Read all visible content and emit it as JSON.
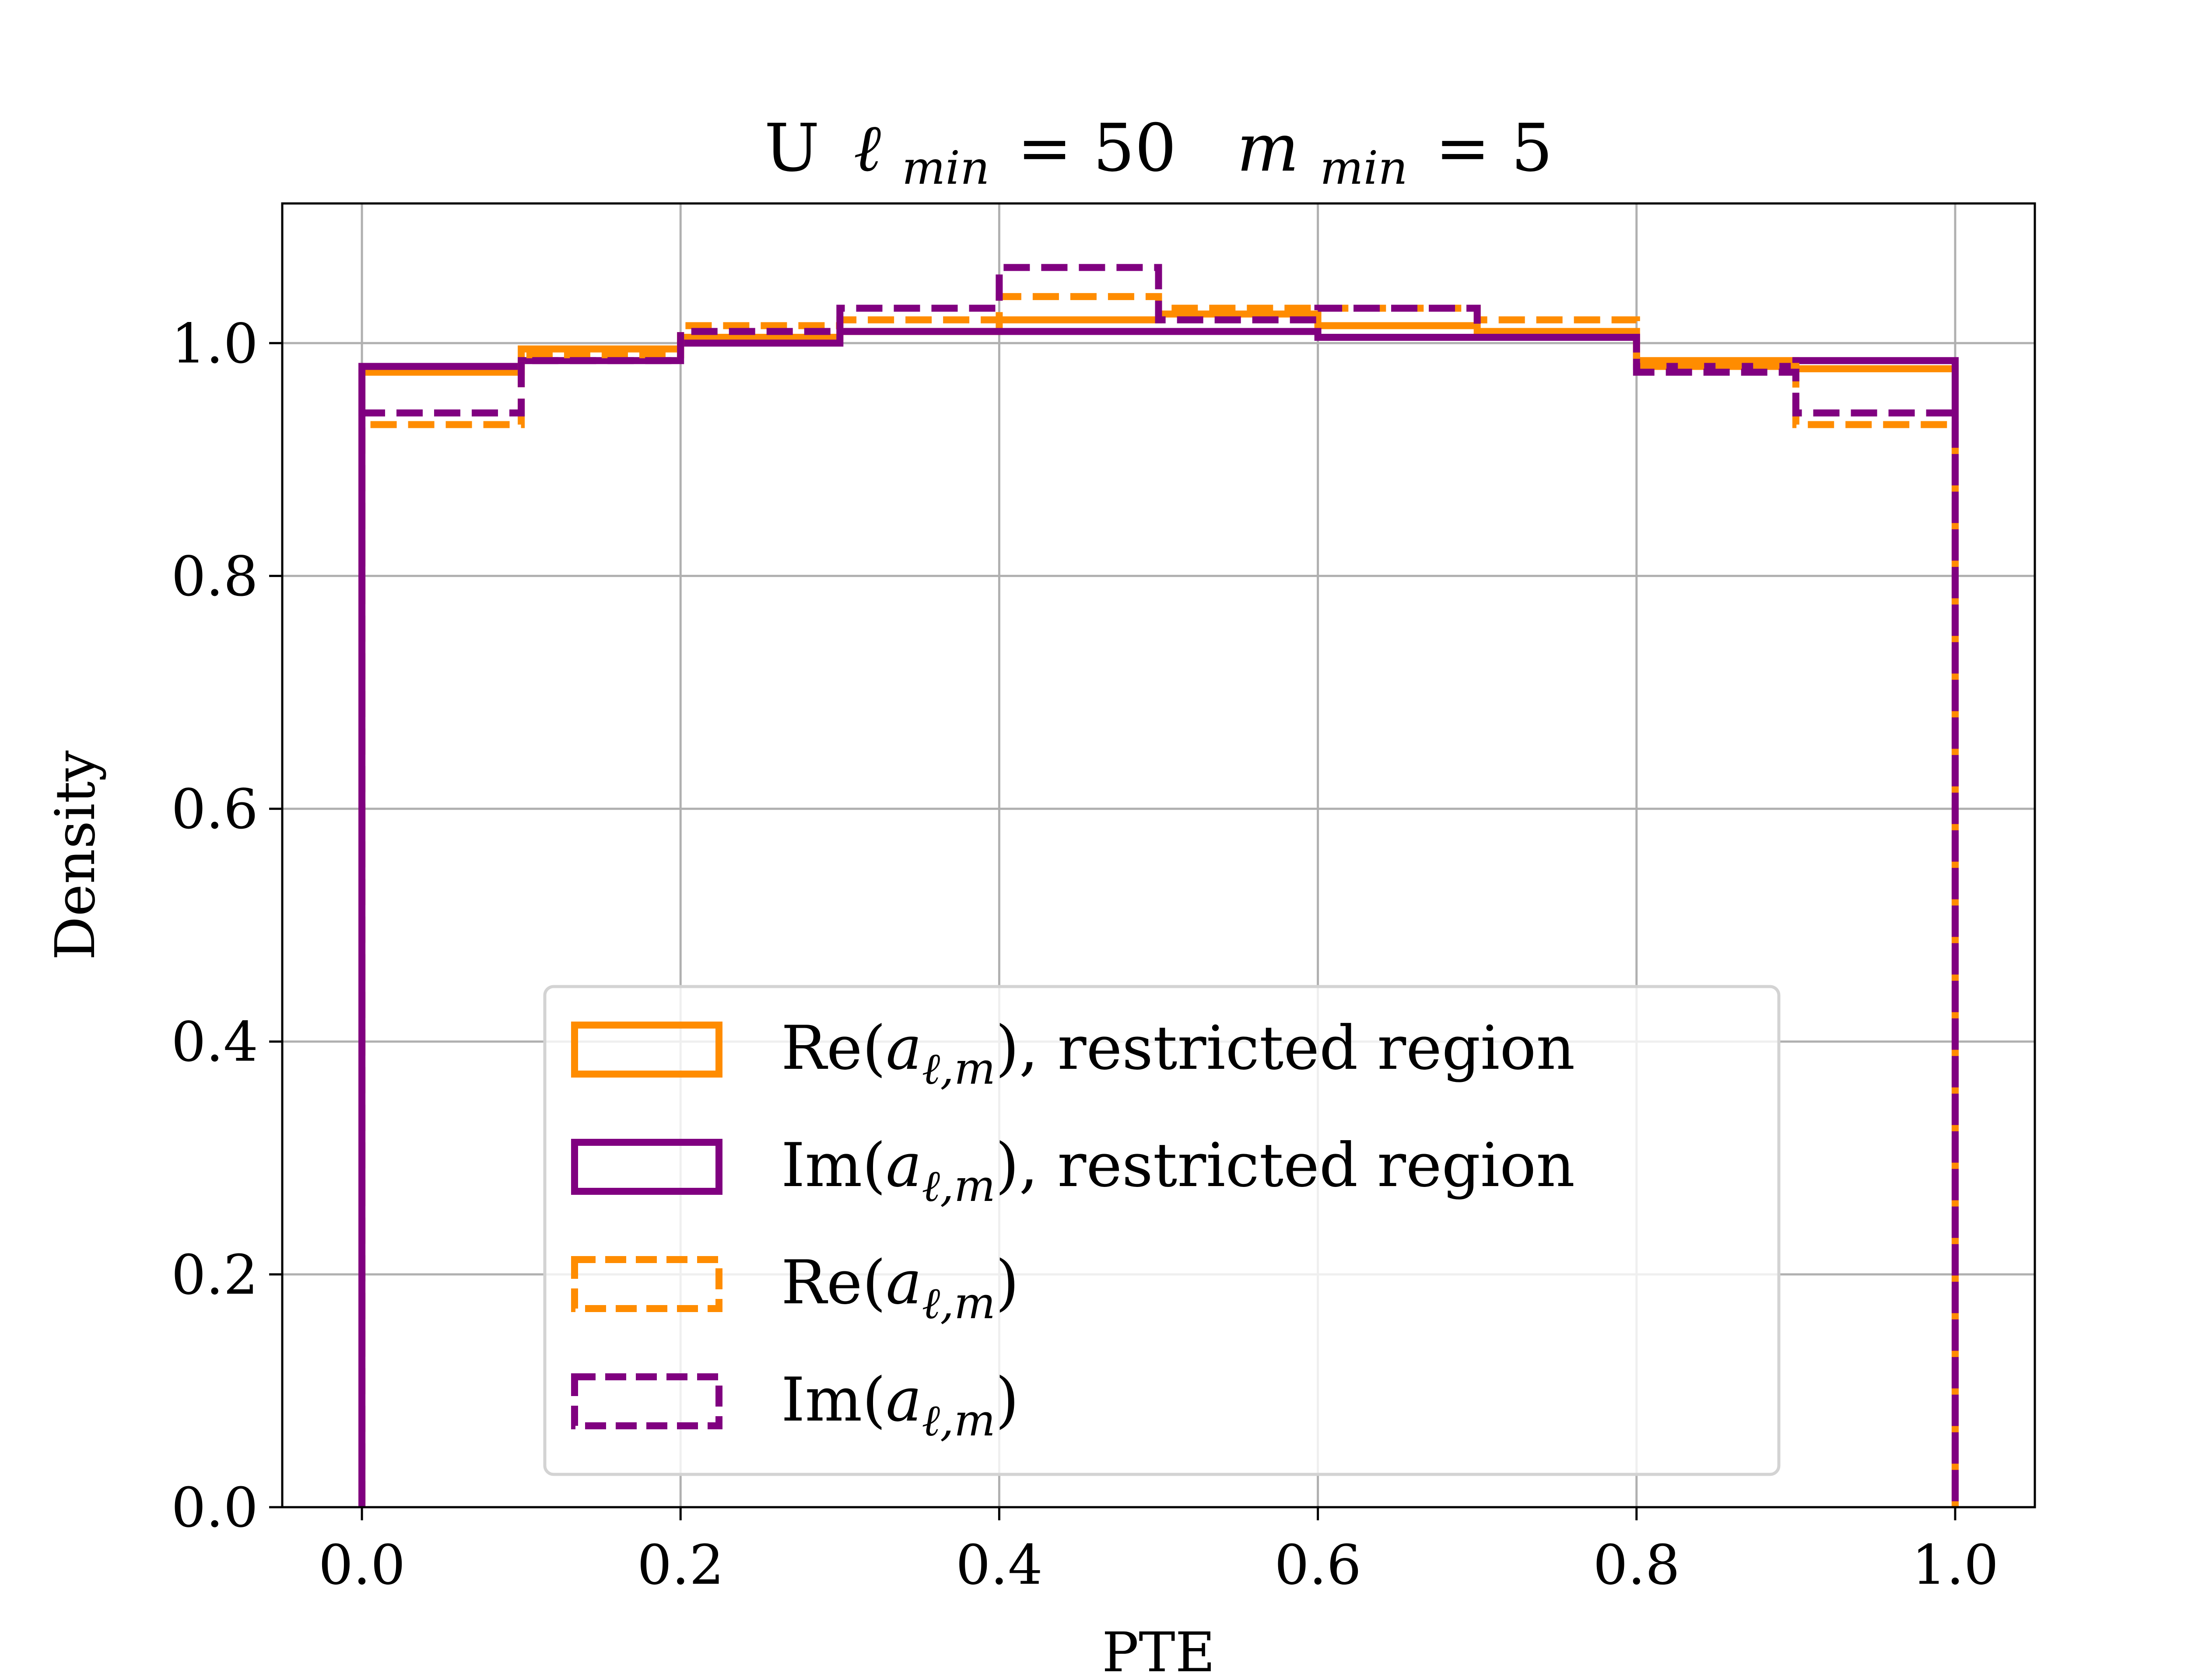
{
  "chart_data": {
    "type": "histogram",
    "title": {
      "prefix": "U",
      "ell_symbol": "ℓ",
      "ell_sub": "min",
      "ell_value": "= 50",
      "m_symbol": "m",
      "m_sub": "min",
      "m_value": "= 5"
    },
    "xlabel": "PTE",
    "ylabel": "Density",
    "xlim": [
      -0.05,
      1.05
    ],
    "ylim": [
      0.0,
      1.12
    ],
    "xticks": [
      "0.0",
      "0.2",
      "0.4",
      "0.6",
      "0.8",
      "1.0"
    ],
    "yticks": [
      "0.0",
      "0.2",
      "0.4",
      "0.6",
      "0.8",
      "1.0"
    ],
    "grid": true,
    "bin_edges": [
      0.0,
      0.1,
      0.2,
      0.3,
      0.4,
      0.5,
      0.6,
      0.7,
      0.8,
      0.9,
      1.0
    ],
    "legend": {
      "placement": "lower center"
    },
    "series": [
      {
        "name_prefix": "Re(",
        "name_symbol": "a",
        "name_sub": "ℓ,m",
        "name_suffix": "), restricted region",
        "color": "#ff8c00",
        "style": "solid",
        "values": [
          0.975,
          0.995,
          1.005,
          1.01,
          1.02,
          1.025,
          1.015,
          1.01,
          0.985,
          0.978
        ]
      },
      {
        "name_prefix": "Im(",
        "name_symbol": "a",
        "name_sub": "ℓ,m",
        "name_suffix": "), restricted region",
        "color": "#800080",
        "style": "solid",
        "values": [
          0.98,
          0.985,
          1.0,
          1.01,
          1.01,
          1.01,
          1.005,
          1.005,
          0.98,
          0.985
        ]
      },
      {
        "name_prefix": "Re(",
        "name_symbol": "a",
        "name_sub": "ℓ,m",
        "name_suffix": ")",
        "color": "#ff8c00",
        "style": "dashed",
        "values": [
          0.93,
          0.99,
          1.015,
          1.02,
          1.04,
          1.03,
          1.03,
          1.02,
          0.98,
          0.93
        ]
      },
      {
        "name_prefix": "Im(",
        "name_symbol": "a",
        "name_sub": "ℓ,m",
        "name_suffix": ")",
        "color": "#800080",
        "style": "dashed",
        "values": [
          0.94,
          0.985,
          1.01,
          1.03,
          1.065,
          1.02,
          1.03,
          1.005,
          0.975,
          0.94
        ]
      }
    ]
  }
}
